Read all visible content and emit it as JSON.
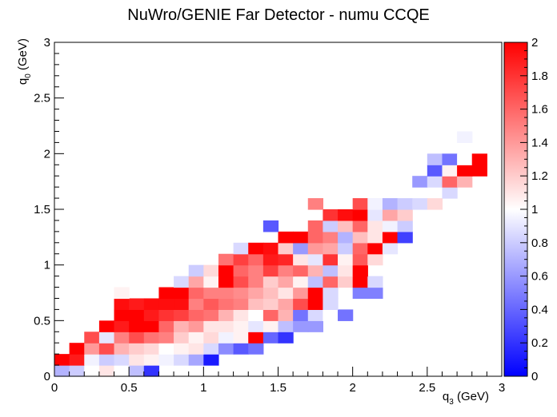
{
  "chart_data": {
    "type": "heatmap",
    "title": "NuWro/GENIE Far Detector - numu CCQE",
    "xlabel": "q_3 (GeV)",
    "ylabel": "q_0 (GeV)",
    "xlabel_main": "q",
    "xlabel_sub": "3",
    "xlabel_unit": " (GeV)",
    "ylabel_main": "q",
    "ylabel_sub": "0",
    "ylabel_unit": " (GeV)",
    "xlim": [
      0,
      3
    ],
    "ylim": [
      0,
      3
    ],
    "zlim": [
      0,
      2
    ],
    "bins": {
      "nx": 30,
      "ny": 30,
      "dx": 0.1,
      "dy": 0.1
    },
    "x_ticks": [
      "0",
      "0.5",
      "1",
      "1.5",
      "2",
      "2.5",
      "3"
    ],
    "y_ticks": [
      "0",
      "0.5",
      "1",
      "1.5",
      "2",
      "2.5",
      "3"
    ],
    "z_ticks": [
      "0",
      "0.2",
      "0.4",
      "0.6",
      "0.8",
      "1",
      "1.2",
      "1.4",
      "1.6",
      "1.8",
      "2"
    ],
    "colorscale": [
      "#0000ff",
      "#ffffff",
      "#ff0000"
    ],
    "cells": [
      [
        0.05,
        0.05,
        0.7
      ],
      [
        0.15,
        0.05,
        0.8
      ],
      [
        0.25,
        0.05,
        1.0
      ],
      [
        0.35,
        0.05,
        1.1
      ],
      [
        0.45,
        0.05,
        1.0
      ],
      [
        0.55,
        0.05,
        0.75
      ],
      [
        0.65,
        0.05,
        0.2
      ],
      [
        0.05,
        0.15,
        2.0
      ],
      [
        0.15,
        0.15,
        1.9
      ],
      [
        0.25,
        0.15,
        0.95
      ],
      [
        0.35,
        0.15,
        0.8
      ],
      [
        0.45,
        0.15,
        0.85
      ],
      [
        0.55,
        0.15,
        1.1
      ],
      [
        0.65,
        0.15,
        1.05
      ],
      [
        0.75,
        0.15,
        0.95
      ],
      [
        0.85,
        0.15,
        0.85
      ],
      [
        0.95,
        0.15,
        0.65
      ],
      [
        1.05,
        0.15,
        0.1
      ],
      [
        0.15,
        0.25,
        2.0
      ],
      [
        0.25,
        0.25,
        1.4
      ],
      [
        0.35,
        0.25,
        1.7
      ],
      [
        0.45,
        0.25,
        1.3
      ],
      [
        0.55,
        0.25,
        1.2
      ],
      [
        0.65,
        0.25,
        1.15
      ],
      [
        0.75,
        0.25,
        1.0
      ],
      [
        0.85,
        0.25,
        1.05
      ],
      [
        0.95,
        0.25,
        1.1
      ],
      [
        1.05,
        0.25,
        0.85
      ],
      [
        1.15,
        0.25,
        0.55
      ],
      [
        1.25,
        0.25,
        0.35
      ],
      [
        1.35,
        0.25,
        0.45
      ],
      [
        0.25,
        0.35,
        1.7
      ],
      [
        0.35,
        0.35,
        0.9
      ],
      [
        0.45,
        0.35,
        1.5
      ],
      [
        0.55,
        0.35,
        1.7
      ],
      [
        0.65,
        0.35,
        1.55
      ],
      [
        0.75,
        0.35,
        1.5
      ],
      [
        0.85,
        0.35,
        1.2
      ],
      [
        0.95,
        0.35,
        1.05
      ],
      [
        1.05,
        0.35,
        1.15
      ],
      [
        1.15,
        0.35,
        0.95
      ],
      [
        1.25,
        0.35,
        1.05
      ],
      [
        1.35,
        0.35,
        2.0
      ],
      [
        1.45,
        0.35,
        0.4
      ],
      [
        1.55,
        0.35,
        0.2
      ],
      [
        0.35,
        0.45,
        2.0
      ],
      [
        0.45,
        0.45,
        1.9
      ],
      [
        0.55,
        0.45,
        2.0
      ],
      [
        0.65,
        0.45,
        2.0
      ],
      [
        0.75,
        0.45,
        1.6
      ],
      [
        0.85,
        0.45,
        1.3
      ],
      [
        0.95,
        0.45,
        1.4
      ],
      [
        1.05,
        0.45,
        1.1
      ],
      [
        1.15,
        0.45,
        1.1
      ],
      [
        1.25,
        0.45,
        1.05
      ],
      [
        1.35,
        0.45,
        0.9
      ],
      [
        1.45,
        0.45,
        1.05
      ],
      [
        1.55,
        0.45,
        0.75
      ],
      [
        1.65,
        0.45,
        0.6
      ],
      [
        1.75,
        0.45,
        0.6
      ],
      [
        0.45,
        0.55,
        2.0
      ],
      [
        0.55,
        0.55,
        2.0
      ],
      [
        0.65,
        0.55,
        1.9
      ],
      [
        0.75,
        0.55,
        1.8
      ],
      [
        0.85,
        0.55,
        1.75
      ],
      [
        0.95,
        0.55,
        1.6
      ],
      [
        1.05,
        0.55,
        1.55
      ],
      [
        1.15,
        0.55,
        1.3
      ],
      [
        1.25,
        0.55,
        1.1
      ],
      [
        1.35,
        0.55,
        1.0
      ],
      [
        1.45,
        0.55,
        1.6
      ],
      [
        1.55,
        0.55,
        1.3
      ],
      [
        1.65,
        0.55,
        0.45
      ],
      [
        1.75,
        0.55,
        0.85
      ],
      [
        1.85,
        0.55,
        1.0
      ],
      [
        1.95,
        0.55,
        0.45
      ],
      [
        0.45,
        0.65,
        1.95
      ],
      [
        0.55,
        0.65,
        1.9
      ],
      [
        0.65,
        0.65,
        1.95
      ],
      [
        0.75,
        0.65,
        1.95
      ],
      [
        0.85,
        0.65,
        1.95
      ],
      [
        0.95,
        0.65,
        1.5
      ],
      [
        1.05,
        0.65,
        1.65
      ],
      [
        1.15,
        0.65,
        1.55
      ],
      [
        1.25,
        0.65,
        1.5
      ],
      [
        1.35,
        0.65,
        1.25
      ],
      [
        1.45,
        0.65,
        1.2
      ],
      [
        1.55,
        0.65,
        1.35
      ],
      [
        1.65,
        0.65,
        1.7
      ],
      [
        1.75,
        0.65,
        2.0
      ],
      [
        1.85,
        0.65,
        0.85
      ],
      [
        0.45,
        0.75,
        1.05
      ],
      [
        0.75,
        0.75,
        2.0
      ],
      [
        0.85,
        0.75,
        2.0
      ],
      [
        0.95,
        0.75,
        1.6
      ],
      [
        1.05,
        0.75,
        1.5
      ],
      [
        1.15,
        0.75,
        1.5
      ],
      [
        1.25,
        0.75,
        1.45
      ],
      [
        1.35,
        0.75,
        1.35
      ],
      [
        1.45,
        0.75,
        1.25
      ],
      [
        1.55,
        0.75,
        1.1
      ],
      [
        1.65,
        0.75,
        1.4
      ],
      [
        1.75,
        0.75,
        2.0
      ],
      [
        1.85,
        0.75,
        0.85
      ],
      [
        2.05,
        0.75,
        0.5
      ],
      [
        2.15,
        0.75,
        0.5
      ],
      [
        0.85,
        0.85,
        0.85
      ],
      [
        0.95,
        0.85,
        1.35
      ],
      [
        1.05,
        0.85,
        1.05
      ],
      [
        1.15,
        0.85,
        2.0
      ],
      [
        1.25,
        0.85,
        1.7
      ],
      [
        1.35,
        0.85,
        1.5
      ],
      [
        1.45,
        0.85,
        1.2
      ],
      [
        1.55,
        0.85,
        1.35
      ],
      [
        1.65,
        0.85,
        1.05
      ],
      [
        1.75,
        0.85,
        0.75
      ],
      [
        1.85,
        0.85,
        1.6
      ],
      [
        1.95,
        0.85,
        1.2
      ],
      [
        2.05,
        0.85,
        2.0
      ],
      [
        2.15,
        0.85,
        0.85
      ],
      [
        0.95,
        0.95,
        0.8
      ],
      [
        1.05,
        0.95,
        1.15
      ],
      [
        1.15,
        0.95,
        2.0
      ],
      [
        1.25,
        0.95,
        1.6
      ],
      [
        1.35,
        0.95,
        1.5
      ],
      [
        1.45,
        0.95,
        1.75
      ],
      [
        1.55,
        0.95,
        1.5
      ],
      [
        1.65,
        0.95,
        1.6
      ],
      [
        1.75,
        0.95,
        1.3
      ],
      [
        1.85,
        0.95,
        0.75
      ],
      [
        1.95,
        0.95,
        1.1
      ],
      [
        2.05,
        0.95,
        2.0
      ],
      [
        1.15,
        1.05,
        1.55
      ],
      [
        1.25,
        1.05,
        1.75
      ],
      [
        1.35,
        1.05,
        1.6
      ],
      [
        1.45,
        1.05,
        1.9
      ],
      [
        1.55,
        1.05,
        1.85
      ],
      [
        1.65,
        1.05,
        1.1
      ],
      [
        1.75,
        1.05,
        0.9
      ],
      [
        1.85,
        1.05,
        1.8
      ],
      [
        1.95,
        1.05,
        1.05
      ],
      [
        2.05,
        1.05,
        1.65
      ],
      [
        2.15,
        1.05,
        1.15
      ],
      [
        1.25,
        1.15,
        0.85
      ],
      [
        1.35,
        1.15,
        2.0
      ],
      [
        1.45,
        1.15,
        1.95
      ],
      [
        1.55,
        1.15,
        1.2
      ],
      [
        1.65,
        1.15,
        0.6
      ],
      [
        1.75,
        1.15,
        1.4
      ],
      [
        1.85,
        1.15,
        1.35
      ],
      [
        1.95,
        1.15,
        0.8
      ],
      [
        2.05,
        1.15,
        1.6
      ],
      [
        2.15,
        1.15,
        2.0
      ],
      [
        2.25,
        1.15,
        0.9
      ],
      [
        1.55,
        1.25,
        2.0
      ],
      [
        1.65,
        1.25,
        2.0
      ],
      [
        1.75,
        1.25,
        1.6
      ],
      [
        1.85,
        1.25,
        1.5
      ],
      [
        1.95,
        1.25,
        0.7
      ],
      [
        2.05,
        1.25,
        1.25
      ],
      [
        2.15,
        1.25,
        1.1
      ],
      [
        2.25,
        1.25,
        2.0
      ],
      [
        2.35,
        1.25,
        0.25
      ],
      [
        1.45,
        1.35,
        0.35
      ],
      [
        1.75,
        1.35,
        1.6
      ],
      [
        1.85,
        1.35,
        0.8
      ],
      [
        1.95,
        1.35,
        1.25
      ],
      [
        2.05,
        1.35,
        1.6
      ],
      [
        2.15,
        1.35,
        1.1
      ],
      [
        2.25,
        1.35,
        0.95
      ],
      [
        2.35,
        1.35,
        0.8
      ],
      [
        1.85,
        1.45,
        1.8
      ],
      [
        1.95,
        1.45,
        1.95
      ],
      [
        2.05,
        1.45,
        2.0
      ],
      [
        2.15,
        1.45,
        0.9
      ],
      [
        2.25,
        1.45,
        1.35
      ],
      [
        2.35,
        1.45,
        1.2
      ],
      [
        1.75,
        1.55,
        1.5
      ],
      [
        2.05,
        1.55,
        1.7
      ],
      [
        2.15,
        1.55,
        0.95
      ],
      [
        2.25,
        1.55,
        0.7
      ],
      [
        2.35,
        1.55,
        0.8
      ],
      [
        2.45,
        1.55,
        0.85
      ],
      [
        2.55,
        1.55,
        1.15
      ],
      [
        2.65,
        1.65,
        0.85
      ],
      [
        2.45,
        1.75,
        0.6
      ],
      [
        2.55,
        1.75,
        0.85
      ],
      [
        2.65,
        1.75,
        1.6
      ],
      [
        2.75,
        1.75,
        1.3
      ],
      [
        2.55,
        1.85,
        0.35
      ],
      [
        2.65,
        1.85,
        1.05
      ],
      [
        2.75,
        1.85,
        2.0
      ],
      [
        2.85,
        1.85,
        2.0
      ],
      [
        2.55,
        1.95,
        0.75
      ],
      [
        2.65,
        1.95,
        0.45
      ],
      [
        2.75,
        1.95,
        1.0
      ],
      [
        2.85,
        1.95,
        2.0
      ],
      [
        2.75,
        2.15,
        0.95
      ]
    ]
  }
}
